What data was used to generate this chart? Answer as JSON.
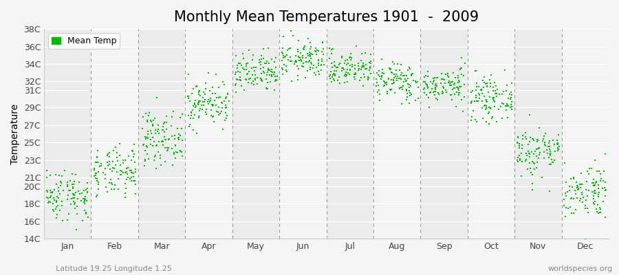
{
  "title": "Monthly Mean Temperatures 1901  -  2009",
  "ylabel": "Temperature",
  "subtitle": "Latitude 19.25 Longitude 1.25",
  "watermark": "worldspecies.org",
  "start_year": 1901,
  "end_year": 2009,
  "months": [
    "Jan",
    "Feb",
    "Mar",
    "Apr",
    "May",
    "Jun",
    "Jul",
    "Aug",
    "Sep",
    "Oct",
    "Nov",
    "Dec"
  ],
  "month_mean_temps": [
    19.0,
    21.5,
    25.5,
    29.5,
    32.8,
    34.5,
    33.5,
    32.0,
    31.5,
    30.0,
    24.0,
    19.5
  ],
  "month_std_temps": [
    1.5,
    1.4,
    1.5,
    1.3,
    1.2,
    1.1,
    1.0,
    1.1,
    1.0,
    1.2,
    1.5,
    1.6
  ],
  "ylim_min": 14,
  "ylim_max": 38,
  "yticks": [
    14,
    16,
    18,
    20,
    21,
    23,
    25,
    27,
    29,
    31,
    32,
    34,
    36,
    38
  ],
  "ytick_labels": [
    "14C",
    "16C",
    "18C",
    "20C",
    "21C",
    "23C",
    "25C",
    "27C",
    "29C",
    "31C",
    "32C",
    "34C",
    "36C",
    "38C"
  ],
  "dot_color": "#00bb00",
  "dot_size": 3,
  "background_color": "#f4f4f4",
  "band_color_odd": "#ebebeb",
  "band_color_even": "#f4f4f4",
  "grid_color": "#ffffff",
  "dashed_line_color": "#999999",
  "title_fontsize": 15,
  "axis_label_fontsize": 10,
  "tick_fontsize": 9,
  "legend_fontsize": 9,
  "subtitle_fontsize": 8,
  "watermark_fontsize": 8
}
